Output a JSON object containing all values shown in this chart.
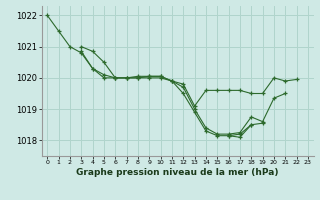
{
  "background_color": "#cfe9e5",
  "grid_color": "#b0d4cc",
  "line_color": "#2d6a2d",
  "marker_color": "#2d6a2d",
  "title": "Graphe pression niveau de la mer (hPa)",
  "ylim": [
    1017.5,
    1022.3
  ],
  "yticks": [
    1018,
    1019,
    1020,
    1021,
    1022
  ],
  "xlim": [
    -0.5,
    23.5
  ],
  "series": [
    [
      1022.0,
      1021.5,
      1021.0,
      1020.8,
      1020.3,
      1020.1,
      1020.0,
      1020.0,
      1020.0,
      1020.0,
      1020.0,
      1019.9,
      1019.8,
      1019.1,
      1019.6,
      1019.6,
      1019.6,
      1019.6,
      1019.5,
      1019.5,
      1020.0,
      1019.9,
      1019.95,
      null
    ],
    [
      null,
      null,
      null,
      1020.85,
      1020.3,
      1020.0,
      1020.0,
      1020.0,
      1020.05,
      1020.05,
      1020.05,
      1019.9,
      1019.7,
      1019.0,
      1018.4,
      1018.2,
      1018.2,
      1018.25,
      1018.75,
      1018.6,
      1019.35,
      1019.5,
      null,
      null
    ],
    [
      null,
      null,
      null,
      1021.0,
      1020.85,
      1020.5,
      1020.0,
      1020.0,
      1020.0,
      1020.05,
      1020.05,
      1019.9,
      1019.5,
      1018.9,
      1018.3,
      1018.15,
      1018.15,
      1018.2,
      1018.5,
      1018.55,
      null,
      null,
      null,
      null
    ],
    [
      null,
      null,
      null,
      null,
      null,
      null,
      null,
      null,
      null,
      null,
      null,
      null,
      null,
      null,
      null,
      null,
      1018.15,
      1018.1,
      1018.5,
      null,
      null,
      null,
      null,
      null
    ]
  ]
}
